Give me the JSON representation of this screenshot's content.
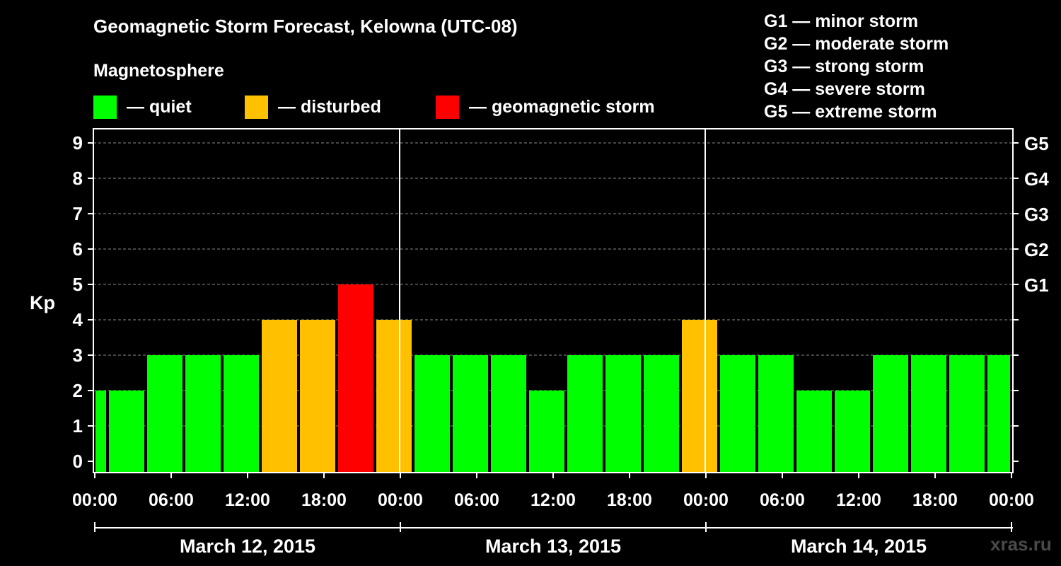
{
  "title": "Geomagnetic Storm Forecast, Kelowna (UTC-08)",
  "legend": {
    "heading": "Magnetosphere",
    "items": [
      {
        "label": "— quiet",
        "color": "#00ff00"
      },
      {
        "label": "— disturbed",
        "color": "#ffc000"
      },
      {
        "label": "— geomagnetic storm",
        "color": "#ff0000"
      }
    ]
  },
  "storm_scale": [
    "G1 — minor storm",
    "G2 — moderate storm",
    "G3 — strong storm",
    "G4 — severe storm",
    "G5 — extreme storm"
  ],
  "watermark": "xras.ru",
  "chart_data": {
    "type": "bar",
    "ylabel": "Kp",
    "ylim": [
      0,
      9
    ],
    "y_ticks": [
      0,
      1,
      2,
      3,
      4,
      5,
      6,
      7,
      8,
      9
    ],
    "right_ticks": [
      {
        "kp": 5,
        "label": "G1"
      },
      {
        "kp": 6,
        "label": "G2"
      },
      {
        "kp": 7,
        "label": "G3"
      },
      {
        "kp": 8,
        "label": "G4"
      },
      {
        "kp": 9,
        "label": "G5"
      }
    ],
    "x_tick_labels": [
      "00:00",
      "06:00",
      "12:00",
      "18:00",
      "00:00",
      "06:00",
      "12:00",
      "18:00",
      "00:00",
      "06:00",
      "12:00",
      "18:00",
      "00:00"
    ],
    "days": [
      "March 12, 2015",
      "March 13, 2015",
      "March 14, 2015"
    ],
    "bar_start_hour": -2,
    "bar_hours": 3,
    "bars": [
      {
        "kp": 2,
        "status": "quiet"
      },
      {
        "kp": 2,
        "status": "quiet"
      },
      {
        "kp": 3,
        "status": "quiet"
      },
      {
        "kp": 3,
        "status": "quiet"
      },
      {
        "kp": 3,
        "status": "quiet"
      },
      {
        "kp": 4,
        "status": "disturbed"
      },
      {
        "kp": 4,
        "status": "disturbed"
      },
      {
        "kp": 5,
        "status": "storm"
      },
      {
        "kp": 4,
        "status": "disturbed"
      },
      {
        "kp": 3,
        "status": "quiet"
      },
      {
        "kp": 3,
        "status": "quiet"
      },
      {
        "kp": 3,
        "status": "quiet"
      },
      {
        "kp": 2,
        "status": "quiet"
      },
      {
        "kp": 3,
        "status": "quiet"
      },
      {
        "kp": 3,
        "status": "quiet"
      },
      {
        "kp": 3,
        "status": "quiet"
      },
      {
        "kp": 4,
        "status": "disturbed"
      },
      {
        "kp": 3,
        "status": "quiet"
      },
      {
        "kp": 3,
        "status": "quiet"
      },
      {
        "kp": 2,
        "status": "quiet"
      },
      {
        "kp": 2,
        "status": "quiet"
      },
      {
        "kp": 3,
        "status": "quiet"
      },
      {
        "kp": 3,
        "status": "quiet"
      },
      {
        "kp": 3,
        "status": "quiet"
      },
      {
        "kp": 3,
        "status": "quiet"
      }
    ],
    "colors": {
      "quiet": "#00ff00",
      "disturbed": "#ffc000",
      "storm": "#ff0000",
      "grid": "#8c8c8c",
      "axis": "#ffffff"
    },
    "grid": true
  }
}
